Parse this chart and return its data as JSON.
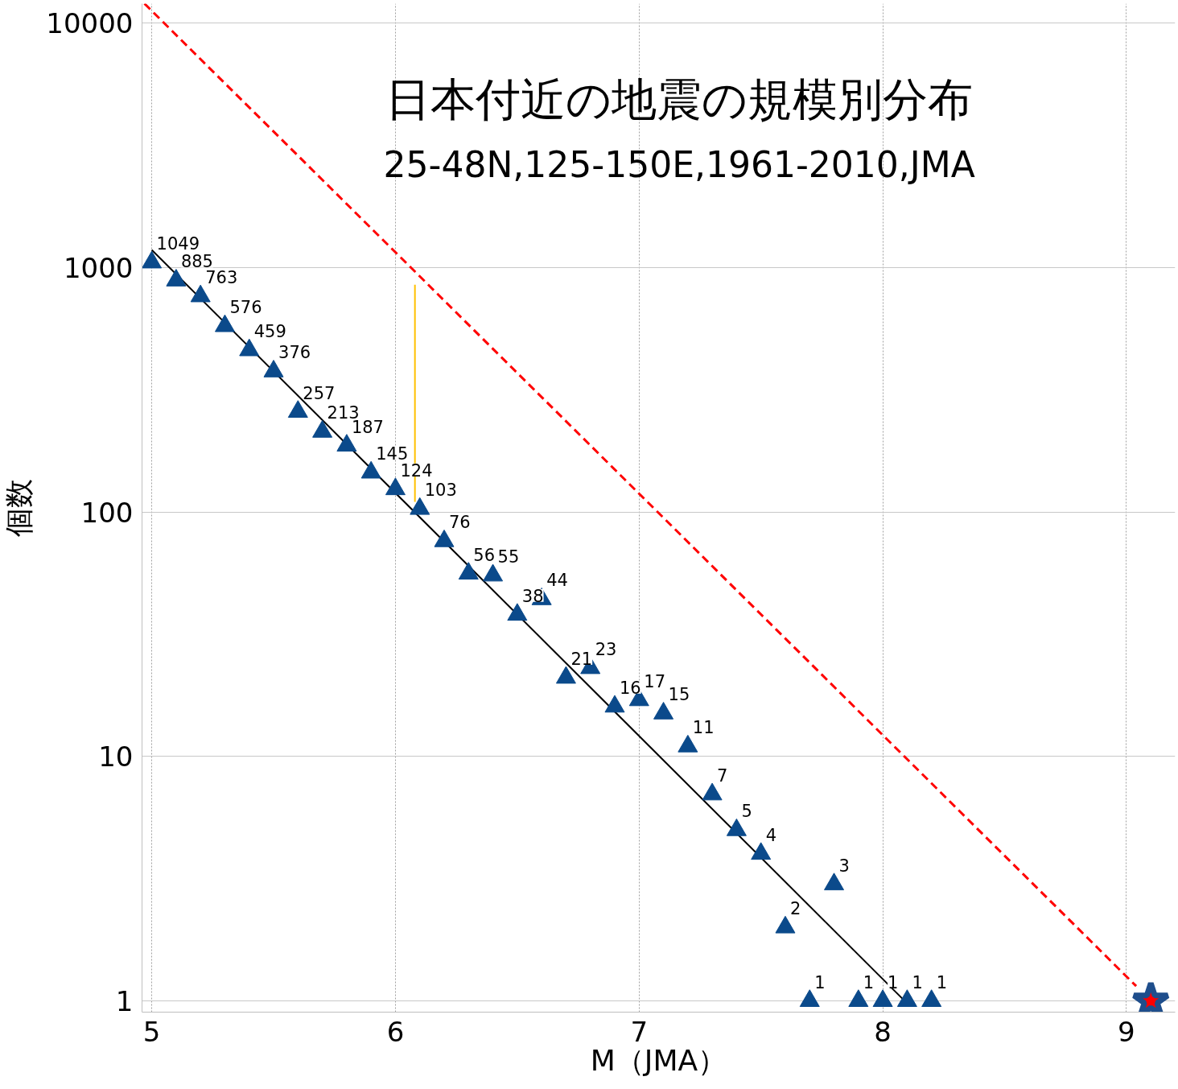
{
  "chart_data": {
    "type": "scatter",
    "title": "日本付近の地震の規模別分布",
    "subtitle": "25-48N,125-150E,1961-2010,JMA",
    "xlabel": "M（JMA）",
    "ylabel": "個数",
    "log": "y",
    "grid": true,
    "xlim": [
      4.96,
      9.2
    ],
    "ylim": [
      0.9,
      12000
    ],
    "xticks": [
      5,
      6,
      7,
      8,
      9
    ],
    "yticks": [
      1,
      10,
      100,
      1000,
      10000
    ],
    "series": [
      {
        "color": "#0b4a8b",
        "marker": "triangle",
        "data_labels": true,
        "x": [
          5.0,
          5.1,
          5.2,
          5.3,
          5.4,
          5.5,
          5.6,
          5.7,
          5.8,
          5.9,
          6.0,
          6.1,
          6.2,
          6.3,
          6.4,
          6.5,
          6.6,
          6.7,
          6.8,
          6.9,
          7.0,
          7.1,
          7.2,
          7.3,
          7.4,
          7.5,
          7.6,
          7.7,
          7.8,
          7.9,
          8.0,
          8.1,
          8.2
        ],
        "values": [
          1049,
          885,
          763,
          576,
          459,
          376,
          257,
          213,
          187,
          145,
          124,
          103,
          76,
          56,
          55,
          38,
          44,
          21,
          23,
          16,
          17,
          15,
          11,
          7,
          5,
          4,
          2,
          1,
          3,
          1,
          1,
          1,
          1
        ]
      },
      {
        "type": "line",
        "color": "#000000",
        "line_style": "solid",
        "marker": "none",
        "x": [
          5.0,
          8.09
        ],
        "values": [
          1180,
          1
        ]
      },
      {
        "type": "line",
        "color": "#ff0000",
        "line_style": "dashed",
        "marker": "none",
        "x": [
          4.97,
          9.04
        ],
        "values": [
          12000,
          1.15
        ]
      },
      {
        "type": "line",
        "color": "#ffc000",
        "line_style": "solid",
        "marker": "none",
        "x": [
          6.08,
          6.08
        ],
        "values": [
          110,
          850
        ]
      },
      {
        "type": "scatter",
        "color": "#ff0000",
        "marker": "star",
        "x": [
          9.1
        ],
        "values": [
          1
        ]
      }
    ]
  }
}
